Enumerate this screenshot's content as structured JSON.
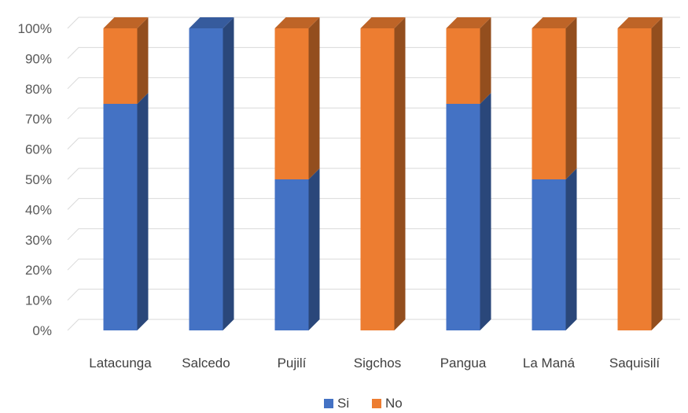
{
  "chart_data": {
    "type": "bar",
    "stacked": true,
    "percent_stacked": true,
    "style": "3d",
    "categories": [
      "Latacunga",
      "Salcedo",
      "Pujilí",
      "Sigchos",
      "Pangua",
      "La Maná",
      "Saquisilí"
    ],
    "series": [
      {
        "name": "Si",
        "color": "#4472C4",
        "values": [
          75,
          100,
          50,
          0,
          75,
          50,
          0
        ]
      },
      {
        "name": "No",
        "color": "#ED7D31",
        "values": [
          25,
          0,
          50,
          100,
          25,
          50,
          100
        ]
      }
    ],
    "y_ticks": [
      "0%",
      "10%",
      "20%",
      "30%",
      "40%",
      "50%",
      "60%",
      "70%",
      "80%",
      "90%",
      "100%"
    ],
    "ylim": [
      0,
      100
    ],
    "grid": true,
    "legend_position": "bottom"
  }
}
